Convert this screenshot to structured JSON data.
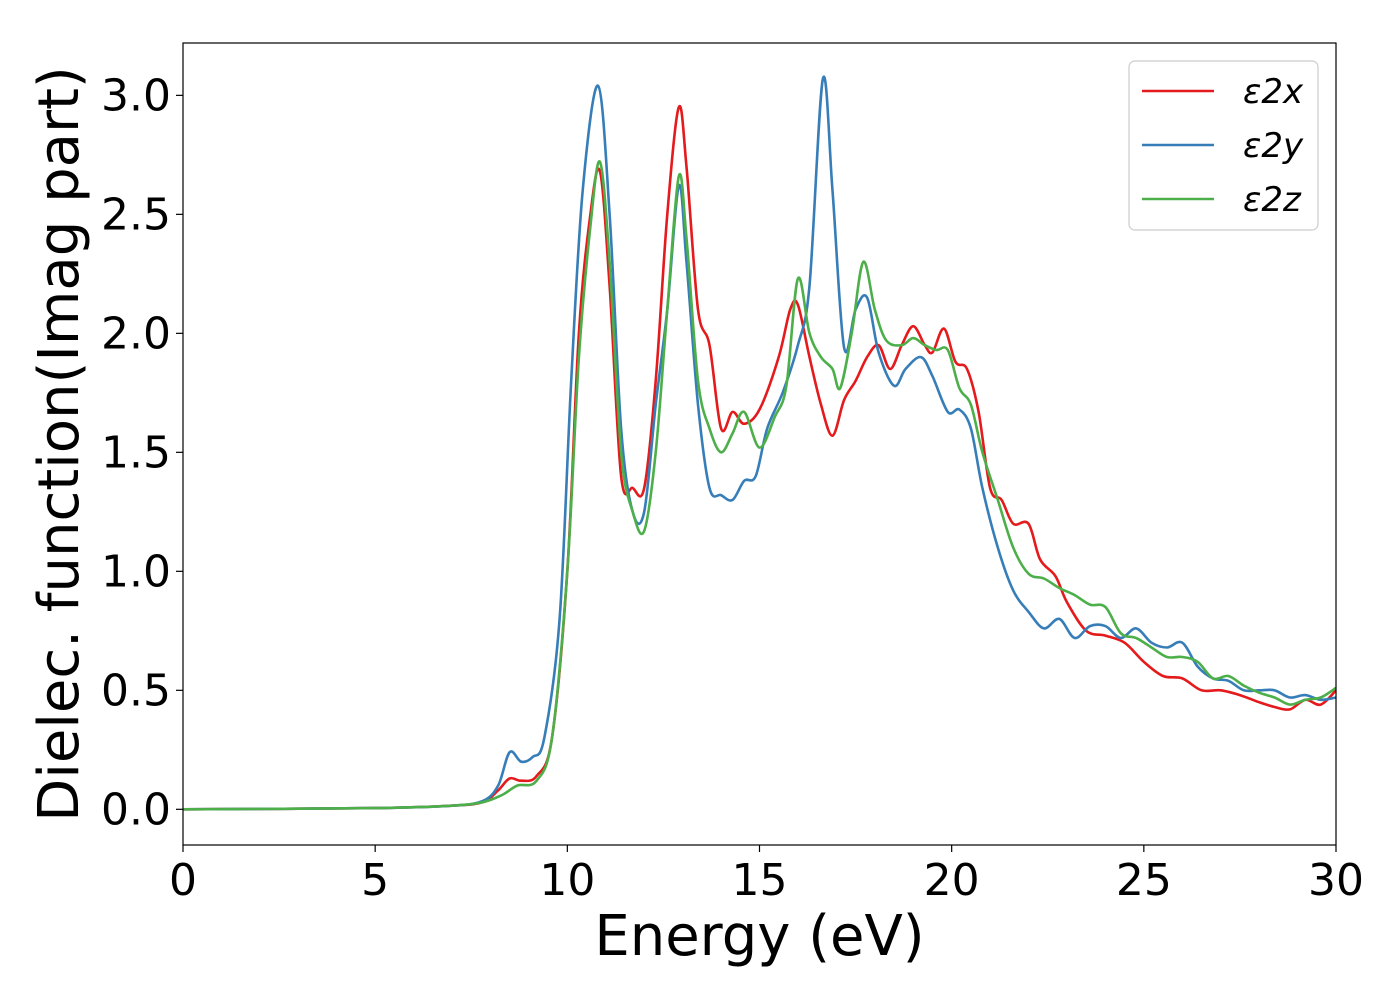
{
  "chart_data": {
    "type": "line",
    "title": "",
    "xlabel": "Energy (eV)",
    "ylabel": "Dielec. function(Imag part)",
    "xlim": [
      0,
      30
    ],
    "ylim": [
      -0.15,
      3.22
    ],
    "xticks": [
      0,
      5,
      10,
      15,
      20,
      25,
      30
    ],
    "xtick_labels": [
      "0",
      "5",
      "10",
      "15",
      "20",
      "25",
      "30"
    ],
    "yticks": [
      0.0,
      0.5,
      1.0,
      1.5,
      2.0,
      2.5,
      3.0
    ],
    "ytick_labels": [
      "0.0",
      "0.5",
      "1.0",
      "1.5",
      "2.0",
      "2.5",
      "3.0"
    ],
    "grid": false,
    "legend_position": "top-right",
    "series": [
      {
        "name": "ε2x",
        "color": "#e41a1c",
        "points": [
          [
            0,
            0
          ],
          [
            5,
            0.005
          ],
          [
            7,
            0.015
          ],
          [
            7.8,
            0.03
          ],
          [
            8.2,
            0.08
          ],
          [
            8.5,
            0.13
          ],
          [
            8.8,
            0.12
          ],
          [
            9.2,
            0.14
          ],
          [
            9.6,
            0.3
          ],
          [
            10.0,
            1.0
          ],
          [
            10.3,
            2.0
          ],
          [
            10.6,
            2.5
          ],
          [
            10.85,
            2.68
          ],
          [
            11.1,
            2.2
          ],
          [
            11.4,
            1.4
          ],
          [
            11.7,
            1.35
          ],
          [
            12.0,
            1.35
          ],
          [
            12.3,
            1.8
          ],
          [
            12.6,
            2.5
          ],
          [
            12.9,
            2.95
          ],
          [
            13.1,
            2.7
          ],
          [
            13.4,
            2.1
          ],
          [
            13.7,
            1.95
          ],
          [
            14.0,
            1.6
          ],
          [
            14.3,
            1.67
          ],
          [
            14.6,
            1.62
          ],
          [
            15.0,
            1.68
          ],
          [
            15.5,
            1.9
          ],
          [
            15.8,
            2.1
          ],
          [
            16.0,
            2.12
          ],
          [
            16.3,
            1.9
          ],
          [
            16.6,
            1.7
          ],
          [
            16.9,
            1.57
          ],
          [
            17.2,
            1.72
          ],
          [
            17.5,
            1.8
          ],
          [
            17.8,
            1.9
          ],
          [
            18.1,
            1.95
          ],
          [
            18.4,
            1.85
          ],
          [
            18.7,
            1.95
          ],
          [
            19.0,
            2.03
          ],
          [
            19.3,
            1.95
          ],
          [
            19.5,
            1.92
          ],
          [
            19.8,
            2.02
          ],
          [
            20.1,
            1.88
          ],
          [
            20.4,
            1.85
          ],
          [
            20.7,
            1.67
          ],
          [
            21.0,
            1.35
          ],
          [
            21.3,
            1.3
          ],
          [
            21.6,
            1.2
          ],
          [
            22.0,
            1.2
          ],
          [
            22.3,
            1.05
          ],
          [
            22.7,
            0.98
          ],
          [
            23.0,
            0.87
          ],
          [
            23.5,
            0.75
          ],
          [
            24.0,
            0.73
          ],
          [
            24.5,
            0.7
          ],
          [
            25.0,
            0.62
          ],
          [
            25.5,
            0.56
          ],
          [
            26.0,
            0.55
          ],
          [
            26.5,
            0.5
          ],
          [
            27.0,
            0.5
          ],
          [
            27.5,
            0.48
          ],
          [
            28.0,
            0.45
          ],
          [
            28.4,
            0.43
          ],
          [
            28.8,
            0.42
          ],
          [
            29.2,
            0.46
          ],
          [
            29.6,
            0.44
          ],
          [
            30,
            0.5
          ]
        ]
      },
      {
        "name": "ε2y",
        "color": "#377eb8",
        "points": [
          [
            0,
            0
          ],
          [
            5,
            0.005
          ],
          [
            7,
            0.015
          ],
          [
            7.8,
            0.035
          ],
          [
            8.2,
            0.1
          ],
          [
            8.5,
            0.24
          ],
          [
            8.8,
            0.2
          ],
          [
            9.1,
            0.22
          ],
          [
            9.4,
            0.3
          ],
          [
            9.8,
            0.8
          ],
          [
            10.1,
            1.8
          ],
          [
            10.4,
            2.6
          ],
          [
            10.8,
            3.04
          ],
          [
            11.1,
            2.5
          ],
          [
            11.4,
            1.6
          ],
          [
            11.7,
            1.25
          ],
          [
            12.0,
            1.25
          ],
          [
            12.3,
            1.7
          ],
          [
            12.6,
            2.1
          ],
          [
            12.9,
            2.62
          ],
          [
            13.1,
            2.3
          ],
          [
            13.4,
            1.7
          ],
          [
            13.7,
            1.35
          ],
          [
            14.0,
            1.32
          ],
          [
            14.3,
            1.3
          ],
          [
            14.6,
            1.38
          ],
          [
            14.9,
            1.4
          ],
          [
            15.2,
            1.6
          ],
          [
            15.6,
            1.75
          ],
          [
            16.0,
            1.95
          ],
          [
            16.3,
            2.2
          ],
          [
            16.65,
            3.07
          ],
          [
            16.9,
            2.6
          ],
          [
            17.2,
            1.94
          ],
          [
            17.5,
            2.1
          ],
          [
            17.8,
            2.15
          ],
          [
            18.1,
            1.92
          ],
          [
            18.5,
            1.78
          ],
          [
            18.8,
            1.85
          ],
          [
            19.2,
            1.9
          ],
          [
            19.5,
            1.82
          ],
          [
            19.9,
            1.67
          ],
          [
            20.2,
            1.68
          ],
          [
            20.5,
            1.6
          ],
          [
            20.8,
            1.35
          ],
          [
            21.2,
            1.1
          ],
          [
            21.6,
            0.92
          ],
          [
            22.0,
            0.83
          ],
          [
            22.4,
            0.76
          ],
          [
            22.8,
            0.8
          ],
          [
            23.2,
            0.72
          ],
          [
            23.6,
            0.77
          ],
          [
            24.0,
            0.77
          ],
          [
            24.4,
            0.72
          ],
          [
            24.8,
            0.76
          ],
          [
            25.2,
            0.7
          ],
          [
            25.6,
            0.68
          ],
          [
            26.0,
            0.7
          ],
          [
            26.4,
            0.6
          ],
          [
            26.8,
            0.55
          ],
          [
            27.2,
            0.54
          ],
          [
            27.6,
            0.5
          ],
          [
            28.0,
            0.5
          ],
          [
            28.4,
            0.5
          ],
          [
            28.8,
            0.47
          ],
          [
            29.2,
            0.48
          ],
          [
            29.6,
            0.46
          ],
          [
            30,
            0.47
          ]
        ]
      },
      {
        "name": "ε2z",
        "color": "#4daf4a",
        "points": [
          [
            0,
            0
          ],
          [
            5,
            0.005
          ],
          [
            7,
            0.015
          ],
          [
            7.8,
            0.03
          ],
          [
            8.3,
            0.06
          ],
          [
            8.7,
            0.1
          ],
          [
            9.2,
            0.12
          ],
          [
            9.6,
            0.3
          ],
          [
            10.0,
            1.0
          ],
          [
            10.3,
            1.9
          ],
          [
            10.6,
            2.45
          ],
          [
            10.85,
            2.72
          ],
          [
            11.1,
            2.3
          ],
          [
            11.4,
            1.5
          ],
          [
            11.7,
            1.25
          ],
          [
            12.0,
            1.17
          ],
          [
            12.3,
            1.5
          ],
          [
            12.6,
            2.1
          ],
          [
            12.9,
            2.66
          ],
          [
            13.1,
            2.4
          ],
          [
            13.4,
            1.8
          ],
          [
            13.7,
            1.6
          ],
          [
            14.0,
            1.5
          ],
          [
            14.3,
            1.58
          ],
          [
            14.6,
            1.67
          ],
          [
            15.0,
            1.52
          ],
          [
            15.4,
            1.65
          ],
          [
            15.7,
            1.78
          ],
          [
            16.0,
            2.23
          ],
          [
            16.3,
            2.0
          ],
          [
            16.6,
            1.9
          ],
          [
            16.9,
            1.85
          ],
          [
            17.1,
            1.77
          ],
          [
            17.4,
            2.0
          ],
          [
            17.7,
            2.3
          ],
          [
            18.0,
            2.1
          ],
          [
            18.3,
            1.97
          ],
          [
            18.7,
            1.95
          ],
          [
            19.0,
            1.98
          ],
          [
            19.3,
            1.95
          ],
          [
            19.6,
            1.93
          ],
          [
            19.9,
            1.93
          ],
          [
            20.2,
            1.77
          ],
          [
            20.5,
            1.7
          ],
          [
            20.8,
            1.5
          ],
          [
            21.2,
            1.3
          ],
          [
            21.6,
            1.1
          ],
          [
            22.0,
            0.99
          ],
          [
            22.4,
            0.97
          ],
          [
            22.8,
            0.93
          ],
          [
            23.2,
            0.9
          ],
          [
            23.6,
            0.86
          ],
          [
            24.0,
            0.85
          ],
          [
            24.4,
            0.74
          ],
          [
            24.8,
            0.72
          ],
          [
            25.2,
            0.68
          ],
          [
            25.6,
            0.64
          ],
          [
            26.0,
            0.64
          ],
          [
            26.4,
            0.62
          ],
          [
            26.8,
            0.55
          ],
          [
            27.2,
            0.56
          ],
          [
            27.6,
            0.52
          ],
          [
            28.0,
            0.49
          ],
          [
            28.4,
            0.47
          ],
          [
            28.8,
            0.44
          ],
          [
            29.2,
            0.46
          ],
          [
            29.6,
            0.47
          ],
          [
            30,
            0.51
          ]
        ]
      }
    ]
  }
}
